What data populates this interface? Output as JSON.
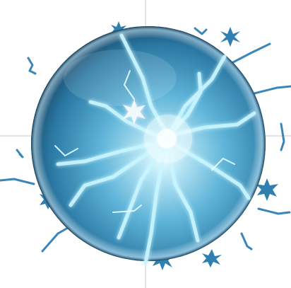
{
  "image": {
    "subject": "energy-orb",
    "palette": {
      "background": "#ffffff",
      "orb_core": "#e9fbff",
      "orb_mid": "#5fb4d8",
      "orb_edge": "#1e5f86",
      "orb_rim": "#0f3550",
      "lightning": "#b9f2ff",
      "lightning_glow": "#6fdcff",
      "spark": "#2f7fb0",
      "guide_line": "#c8c8c8"
    },
    "guides": {
      "visible": true
    }
  }
}
